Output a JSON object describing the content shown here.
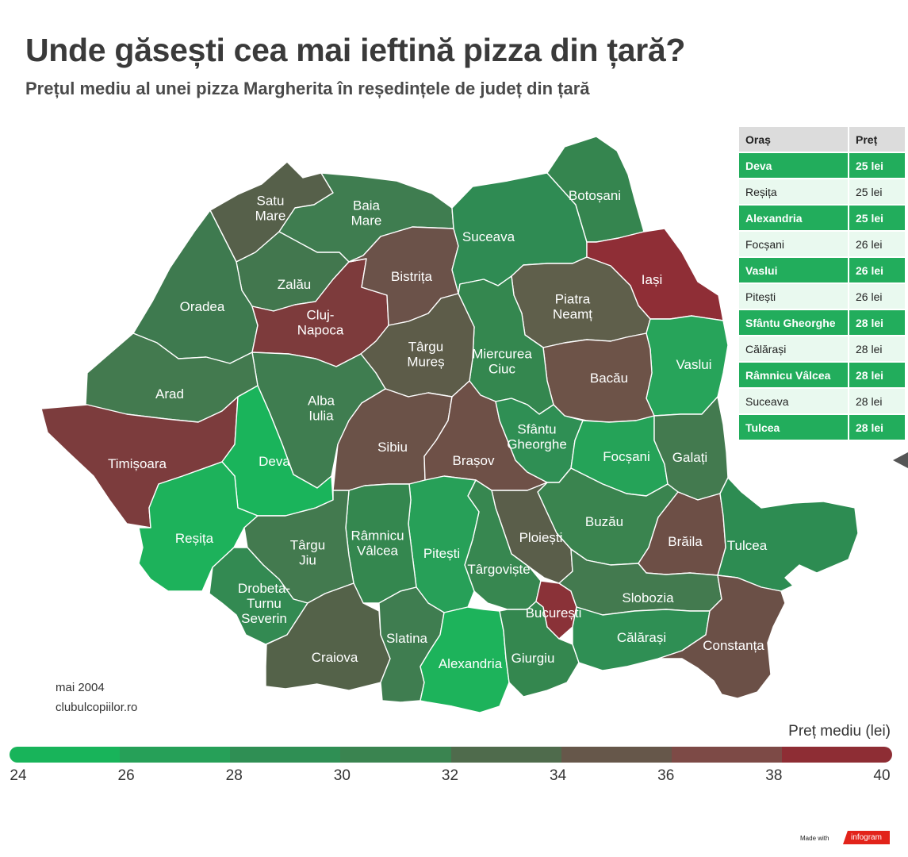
{
  "title": "Unde găsești cea mai ieftină pizza din țară?",
  "subtitle": "Prețul mediu al unei pizza Margherita în reședințele de județ din țară",
  "source": {
    "date": "mai 2004",
    "site": "clubulcopiilor.ro"
  },
  "table": {
    "headers": [
      "Oraș",
      "Preț"
    ],
    "rows": [
      {
        "city": "Deva",
        "price": "25 lei"
      },
      {
        "city": "Reșița",
        "price": "25 lei"
      },
      {
        "city": "Alexandria",
        "price": "25 lei"
      },
      {
        "city": "Focșani",
        "price": "26 lei"
      },
      {
        "city": "Vaslui",
        "price": "26 lei"
      },
      {
        "city": "Pitești",
        "price": "26 lei"
      },
      {
        "city": "Sfântu Gheorghe",
        "price": "28 lei"
      },
      {
        "city": "Călărași",
        "price": "28 lei"
      },
      {
        "city": "Râmnicu Vâlcea",
        "price": "28 lei"
      },
      {
        "city": "Suceava",
        "price": "28 lei"
      },
      {
        "city": "Tulcea",
        "price": "28 lei"
      }
    ]
  },
  "legend": {
    "title": "Preț mediu (lei)",
    "ticks": [
      24,
      26,
      28,
      30,
      32,
      34,
      36,
      38,
      40
    ],
    "colors": [
      "#18b45a",
      "#26a058",
      "#2f8f54",
      "#3a8450",
      "#4f6b4c",
      "#66574a",
      "#7d4a46",
      "#8e2d34"
    ]
  },
  "regions": [
    {
      "id": "satu-mare",
      "label": [
        "Satu",
        "Mare"
      ],
      "color": "#56604a"
    },
    {
      "id": "maramures",
      "label": [
        "Baia",
        "Mare"
      ],
      "color": "#3f7d50"
    },
    {
      "id": "salaj",
      "label": [
        "Zalău"
      ],
      "color": "#42774e"
    },
    {
      "id": "bihor",
      "label": [
        "Oradea"
      ],
      "color": "#3e7a4f"
    },
    {
      "id": "cluj",
      "label": [
        "Cluj-",
        "Napoca"
      ],
      "color": "#7d3b3c"
    },
    {
      "id": "bistrita",
      "label": [
        "Bistrița"
      ],
      "color": "#6b5249"
    },
    {
      "id": "suceava",
      "label": [
        "Suceava"
      ],
      "color": "#2f8b53"
    },
    {
      "id": "botosani",
      "label": [
        "Botoșani"
      ],
      "color": "#35854f"
    },
    {
      "id": "iasi",
      "label": [
        "Iași"
      ],
      "color": "#8f2e36"
    },
    {
      "id": "neamt",
      "label": [
        "Piatra",
        "Neamț"
      ],
      "color": "#5f5f4b"
    },
    {
      "id": "vaslui",
      "label": [
        "Vaslui"
      ],
      "color": "#27a45a"
    },
    {
      "id": "bacau",
      "label": [
        "Bacău"
      ],
      "color": "#6d5348"
    },
    {
      "id": "harghita",
      "label": [
        "Miercurea",
        "Ciuc"
      ],
      "color": "#34874f"
    },
    {
      "id": "mures",
      "label": [
        "Târgu",
        "Mureș"
      ],
      "color": "#5d5c49"
    },
    {
      "id": "alba",
      "label": [
        "Alba",
        "Iulia"
      ],
      "color": "#3f7d50"
    },
    {
      "id": "arad",
      "label": [
        "Arad"
      ],
      "color": "#437a4f"
    },
    {
      "id": "timis",
      "label": [
        "Timișoara"
      ],
      "color": "#7c3c3d"
    },
    {
      "id": "hunedoara",
      "label": [
        "Deva"
      ],
      "color": "#1ab45b"
    },
    {
      "id": "caras",
      "label": [
        "Reșița"
      ],
      "color": "#1db25b"
    },
    {
      "id": "sibiu",
      "label": [
        "Sibiu"
      ],
      "color": "#6b5248"
    },
    {
      "id": "brasov",
      "label": [
        "Brașov"
      ],
      "color": "#6e5047"
    },
    {
      "id": "covasna",
      "label": [
        "Sfântu",
        "Gheorghe"
      ],
      "color": "#2f8f54"
    },
    {
      "id": "vrancea",
      "label": [
        "Focșani"
      ],
      "color": "#25a358"
    },
    {
      "id": "galati",
      "label": [
        "Galați"
      ],
      "color": "#437a4f"
    },
    {
      "id": "buzau",
      "label": [
        "Buzău"
      ],
      "color": "#3a844f"
    },
    {
      "id": "braila",
      "label": [
        "Brăila"
      ],
      "color": "#6d4f46"
    },
    {
      "id": "tulcea",
      "label": [
        "Tulcea"
      ],
      "color": "#2d8c52"
    },
    {
      "id": "prahova",
      "label": [
        "Ploiești"
      ],
      "color": "#5a5e4a"
    },
    {
      "id": "dambovita",
      "label": [
        "Târgoviște"
      ],
      "color": "#378750"
    },
    {
      "id": "arges",
      "label": [
        "Pitești"
      ],
      "color": "#27a058"
    },
    {
      "id": "valcea",
      "label": [
        "Râmnicu",
        "Vâlcea"
      ],
      "color": "#34874f"
    },
    {
      "id": "gorj",
      "label": [
        "Târgu",
        "Jiu"
      ],
      "color": "#437a4f"
    },
    {
      "id": "mehedinti",
      "label": [
        "Drobeta-",
        "Turnu",
        "Severin"
      ],
      "color": "#338a52"
    },
    {
      "id": "dolj",
      "label": [
        "Craiova"
      ],
      "color": "#546249"
    },
    {
      "id": "olt",
      "label": [
        "Slatina"
      ],
      "color": "#3f7d50"
    },
    {
      "id": "teleorman",
      "label": [
        "Alexandria"
      ],
      "color": "#1db35b"
    },
    {
      "id": "giurgiu",
      "label": [
        "Giurgiu"
      ],
      "color": "#34874f"
    },
    {
      "id": "bucuresti",
      "label": [
        "București"
      ],
      "color": "#8a3238"
    },
    {
      "id": "ialomita",
      "label": [
        "Slobozia"
      ],
      "color": "#437a4f"
    },
    {
      "id": "calarasi",
      "label": [
        "Călărași"
      ],
      "color": "#2f8f54"
    },
    {
      "id": "constanta",
      "label": [
        "Constanța"
      ],
      "color": "#6b5047"
    }
  ]
}
